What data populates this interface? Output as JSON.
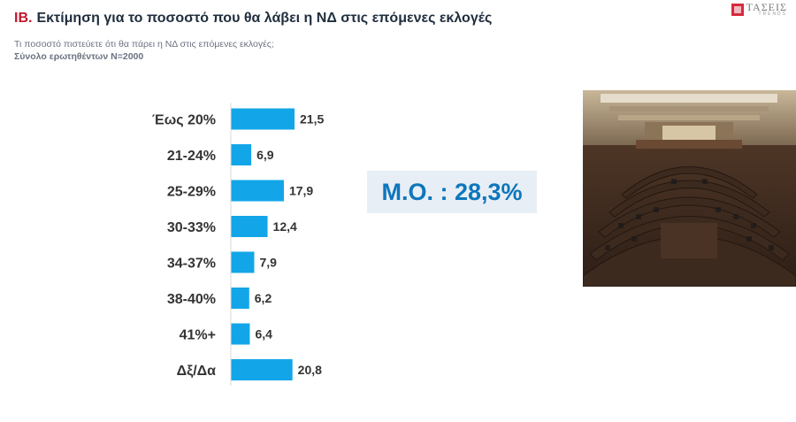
{
  "header": {
    "code": "ΙΒ.",
    "title": "Εκτίμηση για το ποσοστό που θα λάβει η ΝΔ στις επόμενες εκλογές",
    "question": "Τι ποσοστό πιστεύετε ότι θα πάρει η ΝΔ στις επόμενες εκλογές;",
    "sample": "Σύνολο ερωτηθέντων Ν=2000"
  },
  "logo": {
    "main": "ΤΑΣΕΙΣ",
    "sub": "TRENDS"
  },
  "average": {
    "text": "Μ.Ο. : 28,3%"
  },
  "colors": {
    "bar": "#12a6e8",
    "title_code": "#c0182d",
    "average": "#0e76bc"
  },
  "chart_data": {
    "type": "bar",
    "orientation": "horizontal",
    "categories": [
      "Έως 20%",
      "21-24%",
      "25-29%",
      "30-33%",
      "34-37%",
      "38-40%",
      "41%+",
      "Δξ/Δα"
    ],
    "values": [
      21.5,
      6.9,
      17.9,
      12.4,
      7.9,
      6.2,
      6.4,
      20.8
    ],
    "value_labels": [
      "21,5",
      "6,9",
      "17,9",
      "12,4",
      "7,9",
      "6,2",
      "6,4",
      "20,8"
    ],
    "grid": false,
    "legend": "none"
  }
}
